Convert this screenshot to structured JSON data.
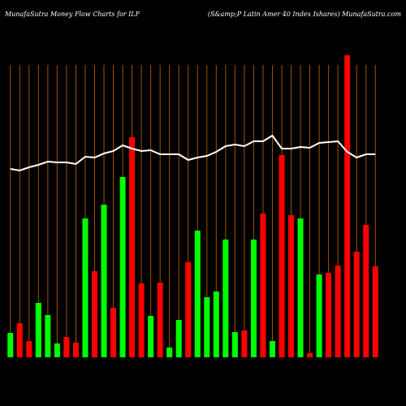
{
  "chart_data": {
    "type": "bar",
    "title": "MunafaSutra  Money Flow  Charts for ILF",
    "subtitle": "(S&amp;P Latin  Amer 40  Index Ishares) MunafaSutra.com",
    "categories": [
      null,
      null,
      null,
      null,
      null,
      null,
      null,
      null,
      null,
      null,
      null,
      null,
      null,
      null,
      null,
      null,
      null,
      null,
      null,
      null,
      null,
      null,
      null,
      null,
      null,
      null,
      null,
      null,
      null,
      null,
      null,
      null,
      null,
      null,
      null,
      null,
      null,
      null,
      null,
      null
    ],
    "ylim": [
      0,
      380
    ],
    "grid": true,
    "grid_color": "#a35200",
    "series": [
      {
        "type": "bar",
        "values": [
          30,
          42,
          20,
          67,
          52,
          17,
          25,
          18,
          171,
          106,
          188,
          61,
          222,
          271,
          91,
          51,
          92,
          12,
          46,
          117,
          156,
          74,
          81,
          145,
          31,
          33,
          145,
          177,
          20,
          249,
          175,
          171,
          5,
          102,
          104,
          113,
          372,
          130,
          163,
          112
        ],
        "colors": [
          "#00ff00",
          "#ff0000",
          "#ff0000",
          "#00ff00",
          "#00ff00",
          "#00ff00",
          "#ff0000",
          "#ff0000",
          "#00ff00",
          "#ff0000",
          "#00ff00",
          "#ff0000",
          "#00ff00",
          "#ff0000",
          "#ff0000",
          "#00ff00",
          "#ff0000",
          "#00ff00",
          "#00ff00",
          "#ff0000",
          "#00ff00",
          "#00ff00",
          "#00ff00",
          "#00ff00",
          "#00ff00",
          "#ff0000",
          "#00ff00",
          "#ff0000",
          "#00ff00",
          "#ff0000",
          "#ff0000",
          "#00ff00",
          "#ff0000",
          "#00ff00",
          "#ff0000",
          "#ff0000",
          "#ff0000",
          "#ff0000",
          "#ff0000",
          "#ff0000"
        ]
      },
      {
        "type": "line",
        "color": "#ffffff",
        "values": [
          232,
          230,
          234,
          237,
          241,
          240,
          240,
          238,
          247,
          246,
          251,
          254,
          261,
          257,
          254,
          255,
          250,
          250,
          250,
          243,
          246,
          248,
          253,
          260,
          262,
          260,
          266,
          266,
          273,
          257,
          257,
          259,
          258,
          264,
          265,
          266,
          253,
          246,
          250,
          250
        ]
      }
    ]
  }
}
